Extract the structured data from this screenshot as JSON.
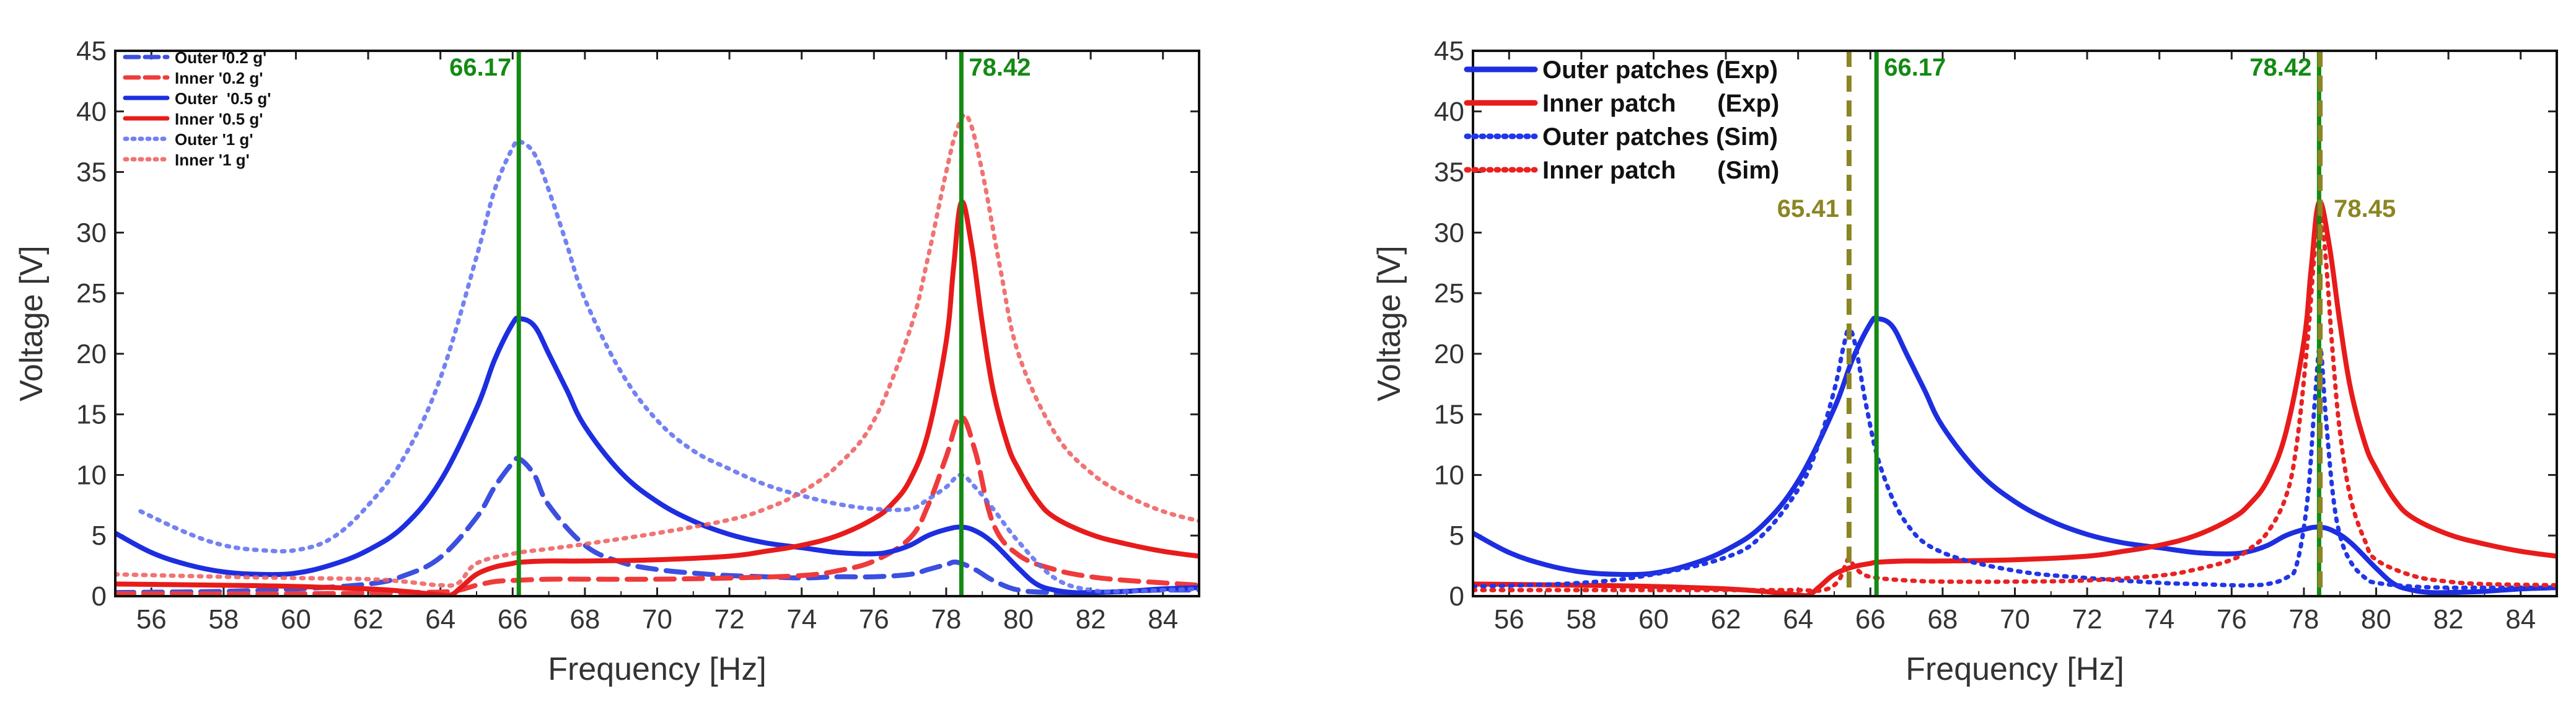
{
  "chart_data": [
    {
      "id": "left",
      "type": "line",
      "xlabel": "Frequency [Hz]",
      "ylabel": "Voltage [V]",
      "xlim": [
        55,
        85
      ],
      "ylim": [
        0,
        45
      ],
      "xticks": [
        56,
        58,
        60,
        62,
        64,
        66,
        68,
        70,
        72,
        74,
        76,
        78,
        80,
        82,
        84
      ],
      "yticks": [
        0,
        5,
        10,
        15,
        20,
        25,
        30,
        35,
        40,
        45
      ],
      "legend_position": "top-left",
      "markers": [
        {
          "x": 66.17,
          "label": "66.17",
          "color": "#138a13",
          "style": "solid",
          "label_side": "left"
        },
        {
          "x": 78.42,
          "label": "78.42",
          "color": "#138a13",
          "style": "solid",
          "label_side": "right"
        }
      ],
      "series": [
        {
          "name": "Outer '0.2 g'",
          "color": "#3b4fe0",
          "style": "dashed",
          "opacity": 1,
          "x": [
            55,
            58,
            60,
            62,
            63,
            64,
            65,
            65.5,
            66,
            66.2,
            66.6,
            67,
            68,
            69,
            70,
            71,
            72,
            73,
            74,
            75,
            76,
            77,
            77.5,
            78,
            78.3,
            78.8,
            79.3,
            80,
            81,
            82,
            83,
            84,
            85
          ],
          "y": [
            0.3,
            0.4,
            0.6,
            1.0,
            1.7,
            3.2,
            6.5,
            9.0,
            11.0,
            11.3,
            10.0,
            7.5,
            4.2,
            2.8,
            2.2,
            1.9,
            1.7,
            1.6,
            1.5,
            1.6,
            1.6,
            1.8,
            2.2,
            2.6,
            2.8,
            2.2,
            1.3,
            0.5,
            0.3,
            0.3,
            0.4,
            0.5,
            0.5
          ]
        },
        {
          "name": "Inner '0.2 g'",
          "color": "#ef3b3b",
          "style": "dashed",
          "opacity": 1,
          "x": [
            55,
            60,
            63,
            64.3,
            65,
            65.5,
            66,
            67,
            68,
            70,
            72,
            74,
            75,
            76,
            77,
            77.5,
            78,
            78.4,
            78.8,
            79.3,
            80,
            81,
            82,
            83,
            84,
            85
          ],
          "y": [
            0.2,
            0.2,
            0.3,
            0.4,
            0.9,
            1.2,
            1.3,
            1.4,
            1.4,
            1.4,
            1.5,
            1.7,
            2.1,
            2.9,
            4.8,
            7.5,
            11.5,
            14.8,
            12.0,
            6.0,
            3.4,
            2.2,
            1.6,
            1.3,
            1.1,
            0.9
          ]
        },
        {
          "name": "Outer  '0.5 g'",
          "color": "#1d2ee0",
          "style": "solid",
          "opacity": 1,
          "x": [
            55,
            56,
            57,
            58,
            59,
            60,
            61,
            62,
            63,
            64,
            65,
            65.5,
            66,
            66.2,
            66.6,
            67,
            67.5,
            68,
            69,
            70,
            71,
            72,
            73,
            74,
            75,
            76,
            76.5,
            77,
            77.5,
            78,
            78.4,
            78.8,
            79.3,
            80,
            80.5,
            81,
            81.5,
            82,
            83,
            84,
            85
          ],
          "y": [
            5.2,
            3.6,
            2.6,
            2.0,
            1.8,
            1.9,
            2.6,
            3.8,
            5.8,
            9.5,
            15.5,
            19.5,
            22.5,
            22.9,
            22.3,
            20.0,
            17.0,
            14.0,
            10.2,
            7.8,
            6.2,
            5.1,
            4.4,
            4.0,
            3.6,
            3.5,
            3.7,
            4.2,
            5.0,
            5.5,
            5.7,
            5.4,
            4.4,
            2.3,
            1.0,
            0.5,
            0.3,
            0.3,
            0.4,
            0.6,
            0.7
          ]
        },
        {
          "name": "Inner '0.5 g'",
          "color": "#e81b1b",
          "style": "solid",
          "opacity": 1,
          "x": [
            55,
            58,
            60,
            62,
            63,
            64,
            64.3,
            64.6,
            65,
            65.5,
            66,
            66.2,
            67,
            68,
            70,
            72,
            73,
            74,
            75,
            76,
            76.5,
            77,
            77.5,
            78,
            78.2,
            78.42,
            78.7,
            79,
            79.3,
            79.7,
            80,
            80.5,
            81,
            82,
            83,
            84,
            85
          ],
          "y": [
            1.0,
            0.9,
            0.8,
            0.6,
            0.4,
            0.1,
            0.1,
            0.8,
            1.8,
            2.4,
            2.7,
            2.8,
            2.9,
            2.9,
            3.0,
            3.3,
            3.7,
            4.2,
            5.0,
            6.4,
            7.6,
            9.6,
            13.5,
            21.0,
            27.0,
            32.5,
            29.0,
            22.5,
            17.0,
            12.5,
            10.5,
            8.0,
            6.5,
            5.1,
            4.3,
            3.7,
            3.3
          ]
        },
        {
          "name": "Outer '1 g'",
          "color": "#5b6cf0",
          "style": "dotted",
          "opacity": 0.85,
          "x": [
            55.7,
            57,
            58,
            59,
            60,
            61,
            62,
            63,
            64,
            65,
            65.5,
            66,
            66.2,
            66.6,
            67,
            67.5,
            68,
            69,
            70,
            71,
            72,
            73,
            74,
            75,
            76,
            77,
            77.5,
            78,
            78.4,
            78.8,
            79.3,
            80,
            81,
            82,
            83,
            84,
            85
          ],
          "y": [
            7.0,
            5.2,
            4.2,
            3.8,
            3.8,
            4.8,
            7.5,
            11.5,
            18.0,
            28.0,
            33.5,
            37.0,
            37.5,
            36.5,
            33.5,
            29.0,
            24.5,
            18.5,
            14.5,
            12.0,
            10.5,
            9.2,
            8.3,
            7.6,
            7.2,
            7.2,
            8.0,
            9.0,
            10.0,
            9.0,
            7.2,
            4.5,
            1.5,
            0.5,
            0.4,
            0.5,
            0.6
          ]
        },
        {
          "name": "Inner '1 g'",
          "color": "#ef5a5a",
          "style": "dotted",
          "opacity": 0.85,
          "x": [
            55,
            58,
            60,
            62,
            63,
            64,
            64.5,
            65,
            66,
            67,
            68,
            70,
            72,
            73,
            74,
            75,
            76,
            77,
            77.5,
            78,
            78.3,
            78.6,
            79,
            79.5,
            80,
            81,
            82,
            83,
            84,
            85
          ],
          "y": [
            1.8,
            1.6,
            1.5,
            1.4,
            1.2,
            0.9,
            1.1,
            2.7,
            3.5,
            3.9,
            4.3,
            5.2,
            6.3,
            7.2,
            8.6,
            10.8,
            14.5,
            22.0,
            28.0,
            35.0,
            38.5,
            39.5,
            35.0,
            27.0,
            20.0,
            13.5,
            10.2,
            8.3,
            7.0,
            6.2
          ]
        }
      ]
    },
    {
      "id": "right",
      "type": "line",
      "xlabel": "Frequency [Hz]",
      "ylabel": "Voltage [V]",
      "xlim": [
        55,
        85
      ],
      "ylim": [
        0,
        45
      ],
      "xticks": [
        56,
        58,
        60,
        62,
        64,
        66,
        68,
        70,
        72,
        74,
        76,
        78,
        80,
        82,
        84
      ],
      "yticks": [
        0,
        5,
        10,
        15,
        20,
        25,
        30,
        35,
        40,
        45
      ],
      "legend_position": "top-left",
      "markers": [
        {
          "x": 65.41,
          "label": "65.41",
          "color": "#8b8523",
          "style": "dashed",
          "label_side": "left-low"
        },
        {
          "x": 66.17,
          "label": "66.17",
          "color": "#138a13",
          "style": "solid",
          "label_side": "right"
        },
        {
          "x": 78.42,
          "label": "78.42",
          "color": "#138a13",
          "style": "solid",
          "label_side": "left"
        },
        {
          "x": 78.45,
          "label": "78.45",
          "color": "#8b8523",
          "style": "dashed",
          "label_side": "right-low"
        }
      ],
      "series": [
        {
          "name": "Outer patches (Exp)",
          "color": "#1d2ee0",
          "style": "solid",
          "opacity": 1,
          "x": [
            55,
            56,
            57,
            58,
            59,
            60,
            61,
            62,
            63,
            64,
            65,
            65.5,
            66,
            66.2,
            66.6,
            67,
            67.5,
            68,
            69,
            70,
            71,
            72,
            73,
            74,
            75,
            76,
            76.5,
            77,
            77.5,
            78,
            78.4,
            78.8,
            79.3,
            80,
            80.5,
            81,
            81.5,
            82,
            83,
            84,
            85
          ],
          "y": [
            5.2,
            3.6,
            2.6,
            2.0,
            1.8,
            1.9,
            2.6,
            3.8,
            5.8,
            9.5,
            15.5,
            19.5,
            22.5,
            22.9,
            22.3,
            20.0,
            17.0,
            14.0,
            10.2,
            7.8,
            6.2,
            5.1,
            4.4,
            4.0,
            3.6,
            3.5,
            3.7,
            4.2,
            5.0,
            5.5,
            5.7,
            5.4,
            4.4,
            2.3,
            1.0,
            0.5,
            0.3,
            0.3,
            0.4,
            0.6,
            0.7
          ]
        },
        {
          "name": "Inner patch      (Exp)",
          "color": "#e81b1b",
          "style": "solid",
          "opacity": 1,
          "x": [
            55,
            58,
            60,
            62,
            63,
            64,
            64.3,
            64.6,
            65,
            65.5,
            66,
            66.2,
            67,
            68,
            70,
            72,
            73,
            74,
            75,
            76,
            76.5,
            77,
            77.5,
            78,
            78.2,
            78.42,
            78.7,
            79,
            79.3,
            79.7,
            80,
            80.5,
            81,
            82,
            83,
            84,
            85
          ],
          "y": [
            1.0,
            0.9,
            0.8,
            0.6,
            0.4,
            0.1,
            0.1,
            0.8,
            1.8,
            2.4,
            2.7,
            2.8,
            2.9,
            2.9,
            3.0,
            3.3,
            3.7,
            4.2,
            5.0,
            6.4,
            7.6,
            9.6,
            13.5,
            21.0,
            27.0,
            32.5,
            29.0,
            22.5,
            17.0,
            12.5,
            10.5,
            8.0,
            6.5,
            5.1,
            4.3,
            3.7,
            3.3
          ]
        },
        {
          "name": "Outer patches (Sim)",
          "color": "#2036e8",
          "style": "dotted",
          "opacity": 1,
          "x": [
            55,
            58,
            60,
            62,
            63,
            64,
            64.5,
            65,
            65.25,
            65.41,
            65.6,
            65.9,
            66.3,
            67,
            68,
            70,
            72,
            74,
            75,
            76,
            76.5,
            77,
            77.5,
            77.8,
            78.1,
            78.3,
            78.45,
            78.6,
            78.8,
            79,
            79.3,
            79.7,
            80,
            81,
            82,
            83,
            85
          ],
          "y": [
            0.8,
            1.1,
            1.8,
            3.2,
            5.0,
            8.8,
            12.0,
            17.0,
            20.5,
            22.0,
            20.5,
            15.5,
            10.5,
            6.0,
            3.6,
            2.1,
            1.5,
            1.1,
            1.0,
            0.9,
            0.9,
            1.0,
            1.5,
            2.6,
            8.0,
            16.0,
            20.5,
            15.0,
            8.5,
            5.0,
            2.8,
            1.5,
            1.1,
            0.8,
            0.7,
            0.7,
            0.7
          ]
        },
        {
          "name": "Inner patch      (Sim)",
          "color": "#e82222",
          "style": "dotted",
          "opacity": 1,
          "x": [
            55,
            58,
            60,
            62,
            63,
            64,
            64.7,
            65.1,
            65.3,
            65.41,
            65.55,
            65.8,
            66.2,
            67,
            68,
            70,
            72,
            74,
            75,
            76,
            76.5,
            77,
            77.5,
            77.8,
            78.1,
            78.3,
            78.45,
            78.6,
            78.8,
            79,
            79.3,
            79.7,
            80,
            81,
            82,
            83,
            85
          ],
          "y": [
            0.5,
            0.5,
            0.5,
            0.5,
            0.5,
            0.5,
            0.5,
            1.2,
            2.5,
            3.1,
            2.5,
            1.8,
            1.5,
            1.3,
            1.2,
            1.2,
            1.3,
            1.7,
            2.2,
            3.0,
            3.9,
            5.3,
            8.2,
            12.5,
            21.0,
            28.5,
            31.5,
            28.0,
            20.0,
            13.5,
            8.0,
            4.5,
            3.0,
            1.7,
            1.2,
            1.0,
            0.9
          ]
        }
      ]
    }
  ]
}
